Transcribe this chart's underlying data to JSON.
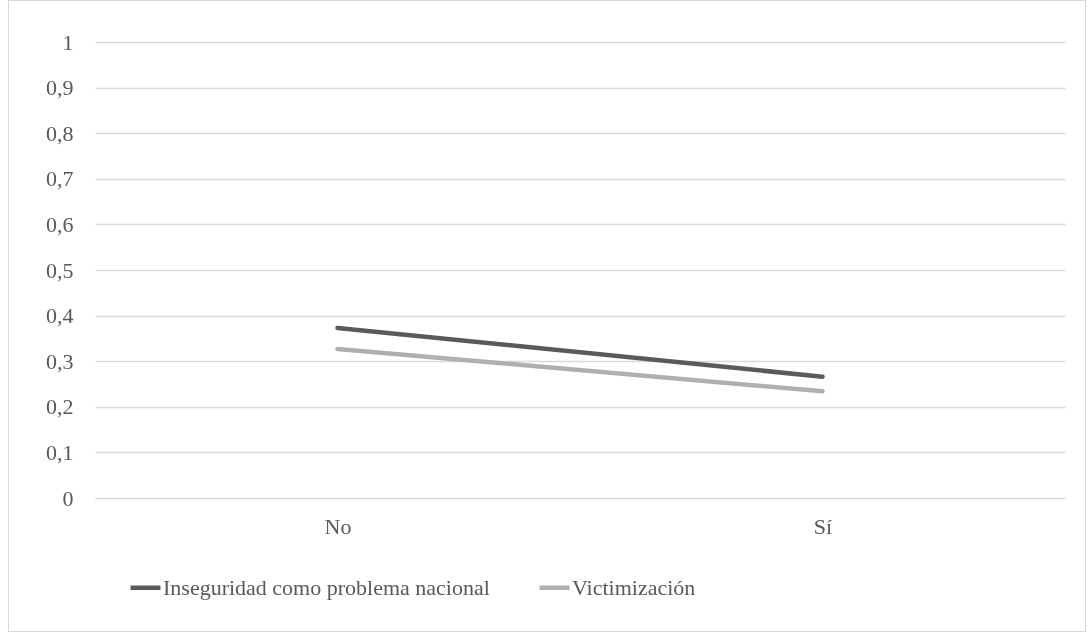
{
  "chart_data": {
    "type": "line",
    "categories": [
      "No",
      "Sí"
    ],
    "series": [
      {
        "name": "Inseguridad como problema nacional",
        "color": "#5a5a5a",
        "values": [
          0.373,
          0.266
        ]
      },
      {
        "name": "Victimización",
        "color": "#afafaf",
        "values": [
          0.327,
          0.234
        ]
      }
    ],
    "ylim": [
      0,
      1
    ],
    "yticks": [
      0,
      {
        "value": 0.1,
        "label": "0,1"
      },
      {
        "value": 0.2,
        "label": "0,2"
      },
      {
        "value": 0.3,
        "label": "0,3"
      },
      {
        "value": 0.4,
        "label": "0,4"
      },
      {
        "value": 0.5,
        "label": "0,5"
      },
      {
        "value": 0.6,
        "label": "0,6"
      },
      {
        "value": 0.7,
        "label": "0,7"
      },
      {
        "value": 0.8,
        "label": "0,8"
      },
      {
        "value": 0.9,
        "label": "0,9"
      },
      1
    ],
    "grid": "y",
    "legend": "bottom",
    "marker": "none",
    "line_style": "solid"
  }
}
